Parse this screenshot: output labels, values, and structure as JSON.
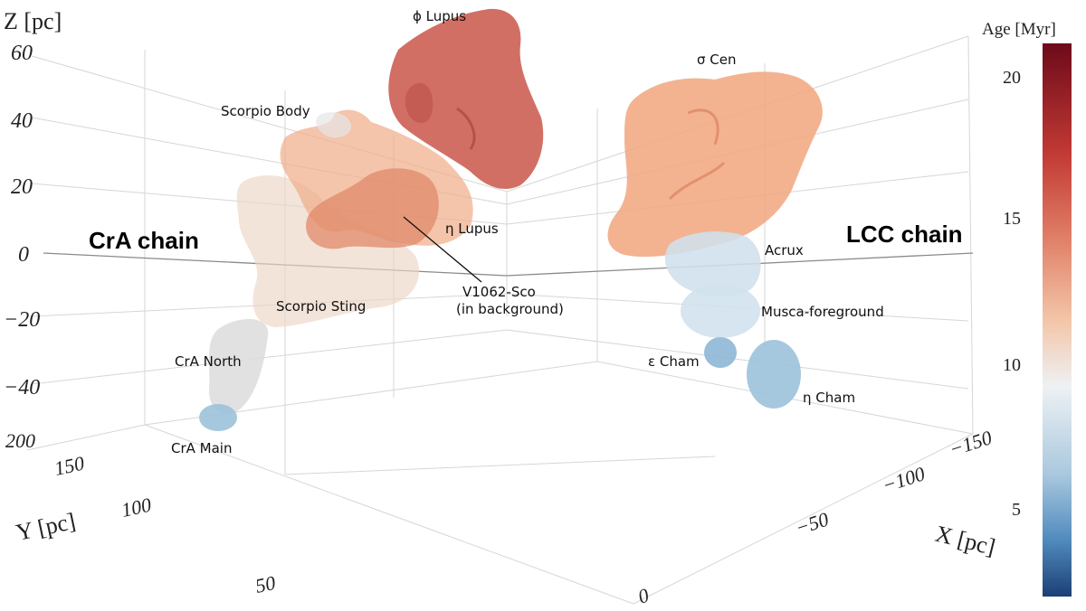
{
  "chart_data": {
    "type": "scatter",
    "chart_kind": "3d-volume",
    "title": "",
    "axes": {
      "z": {
        "label": "Z [pc]",
        "ticks": [
          "60",
          "40",
          "20",
          "0",
          "−20",
          "−40"
        ],
        "range": [
          -45,
          65
        ]
      },
      "y": {
        "label": "Y [pc]",
        "ticks": [
          "200",
          "150",
          "100",
          "50"
        ],
        "range": [
          40,
          210
        ]
      },
      "x": {
        "label": "X [pc]",
        "ticks": [
          "−150",
          "−100",
          "−50",
          "0"
        ],
        "range": [
          -170,
          10
        ]
      }
    },
    "colorbar": {
      "label": "Age [Myr]",
      "ticks": [
        "20",
        "15",
        "10",
        "5"
      ],
      "range": [
        2,
        21
      ],
      "colors": [
        "#2a5a98",
        "#7fb0d3",
        "#eef1f4",
        "#f3c5a8",
        "#e07e66",
        "#c23a34",
        "#6d0a1a"
      ]
    },
    "grid": true,
    "clusters": [
      {
        "name": "ϕ Lupus",
        "age_myr": 18
      },
      {
        "name": "σ Cen",
        "age_myr": 15
      },
      {
        "name": "Scorpio Body",
        "age_myr": 15
      },
      {
        "name": "η Lupus",
        "age_myr": 15
      },
      {
        "name": "Scorpio Sting",
        "age_myr": 13
      },
      {
        "name": "CrA North",
        "age_myr": 11
      },
      {
        "name": "CrA Main",
        "age_myr": 8
      },
      {
        "name": "Acrux",
        "age_myr": 10
      },
      {
        "name": "Musca-foreground",
        "age_myr": 10
      },
      {
        "name": "ε Cham",
        "age_myr": 7
      },
      {
        "name": "η Cham",
        "age_myr": 7
      }
    ],
    "annotations": {
      "crA_chain": "CrA chain",
      "lcc_chain": "LCC chain",
      "v1062_line1": "V1062-Sco",
      "v1062_line2": "(in background)"
    }
  }
}
